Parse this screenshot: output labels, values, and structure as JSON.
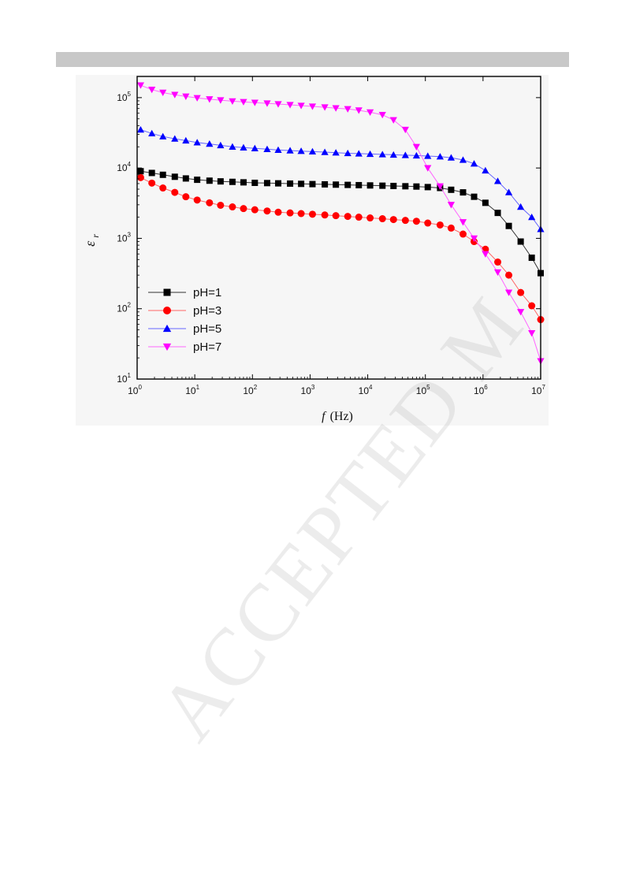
{
  "watermark": "ACCEPTED M",
  "chart_data": {
    "type": "scatter",
    "title": "",
    "xlabel": "f (Hz)",
    "xlabel_italic": "f",
    "xlabel_unit": "(Hz)",
    "ylabel": "εr",
    "ylabel_symbol": "ε",
    "ylabel_sub": "r",
    "xscale": "log",
    "yscale": "log",
    "xlim": [
      1,
      10000000
    ],
    "ylim": [
      10,
      200000
    ],
    "x_ticks": [
      {
        "base": "10",
        "exp": "0"
      },
      {
        "base": "10",
        "exp": "1"
      },
      {
        "base": "10",
        "exp": "2"
      },
      {
        "base": "10",
        "exp": "3"
      },
      {
        "base": "10",
        "exp": "4"
      },
      {
        "base": "10",
        "exp": "5"
      },
      {
        "base": "10",
        "exp": "6"
      },
      {
        "base": "10",
        "exp": "7"
      }
    ],
    "y_ticks": [
      {
        "base": "10",
        "exp": "1"
      },
      {
        "base": "10",
        "exp": "2"
      },
      {
        "base": "10",
        "exp": "3"
      },
      {
        "base": "10",
        "exp": "4"
      },
      {
        "base": "10",
        "exp": "5"
      }
    ],
    "legend_position": "bottom-left",
    "grid": false,
    "series": [
      {
        "name": "pH=1",
        "color": "#000000",
        "marker": "square",
        "line_color": "#333333",
        "x": [
          1.15,
          1.8,
          2.8,
          4.5,
          7,
          11,
          18,
          28,
          45,
          70,
          110,
          180,
          280,
          450,
          700,
          1100,
          1800,
          2800,
          4500,
          7000,
          11000,
          18000,
          28000,
          45000,
          70000,
          110000,
          180000,
          280000,
          450000,
          700000,
          1100000,
          1800000,
          2800000,
          4500000,
          7000000,
          10000000
        ],
        "y": [
          9000,
          8500,
          8000,
          7500,
          7100,
          6800,
          6600,
          6450,
          6350,
          6250,
          6150,
          6100,
          6050,
          6000,
          5950,
          5900,
          5850,
          5800,
          5750,
          5700,
          5650,
          5600,
          5550,
          5500,
          5450,
          5350,
          5200,
          4900,
          4500,
          3900,
          3200,
          2300,
          1500,
          900,
          530,
          320
        ]
      },
      {
        "name": "pH=3",
        "color": "#ff0000",
        "marker": "circle",
        "line_color": "#ff6666",
        "x": [
          1.15,
          1.8,
          2.8,
          4.5,
          7,
          11,
          18,
          28,
          45,
          70,
          110,
          180,
          280,
          450,
          700,
          1100,
          1800,
          2800,
          4500,
          7000,
          11000,
          18000,
          28000,
          45000,
          70000,
          110000,
          180000,
          280000,
          450000,
          700000,
          1100000,
          1800000,
          2800000,
          4500000,
          7000000,
          10000000
        ],
        "y": [
          7300,
          6100,
          5200,
          4500,
          3900,
          3500,
          3200,
          2950,
          2800,
          2650,
          2550,
          2450,
          2350,
          2300,
          2250,
          2200,
          2150,
          2100,
          2050,
          2000,
          1950,
          1900,
          1850,
          1800,
          1750,
          1650,
          1550,
          1400,
          1150,
          900,
          700,
          460,
          300,
          170,
          110,
          70
        ]
      },
      {
        "name": "pH=5",
        "color": "#0000ff",
        "marker": "triangle-up",
        "line_color": "#6666ff",
        "x": [
          1.15,
          1.8,
          2.8,
          4.5,
          7,
          11,
          18,
          28,
          45,
          70,
          110,
          180,
          280,
          450,
          700,
          1100,
          1800,
          2800,
          4500,
          7000,
          11000,
          18000,
          28000,
          45000,
          70000,
          110000,
          180000,
          280000,
          450000,
          700000,
          1100000,
          1800000,
          2800000,
          4500000,
          7000000,
          10000000
        ],
        "y": [
          35000,
          31000,
          28000,
          26000,
          24500,
          23000,
          22000,
          21000,
          20000,
          19500,
          19000,
          18500,
          18000,
          17700,
          17400,
          17100,
          16800,
          16500,
          16200,
          16000,
          15800,
          15600,
          15400,
          15200,
          15000,
          14800,
          14500,
          14000,
          13000,
          11500,
          9200,
          6500,
          4500,
          2800,
          2000,
          1350
        ]
      },
      {
        "name": "pH=7",
        "color": "#ff00ff",
        "marker": "triangle-down",
        "line_color": "#ff66ff",
        "x": [
          1.15,
          1.8,
          2.8,
          4.5,
          7,
          11,
          18,
          28,
          45,
          70,
          110,
          180,
          280,
          450,
          700,
          1100,
          1800,
          2800,
          4500,
          7000,
          11000,
          18000,
          28000,
          45000,
          70000,
          110000,
          180000,
          280000,
          450000,
          700000,
          1100000,
          1800000,
          2800000,
          4500000,
          7000000,
          10000000
        ],
        "y": [
          150000,
          130000,
          118000,
          110000,
          104000,
          99000,
          95000,
          92000,
          89000,
          87000,
          85000,
          83000,
          81000,
          79000,
          77000,
          75000,
          73000,
          71000,
          69000,
          66000,
          62000,
          57000,
          48000,
          35000,
          20000,
          10000,
          5500,
          3000,
          1700,
          1000,
          600,
          330,
          170,
          90,
          45,
          18
        ]
      }
    ]
  }
}
